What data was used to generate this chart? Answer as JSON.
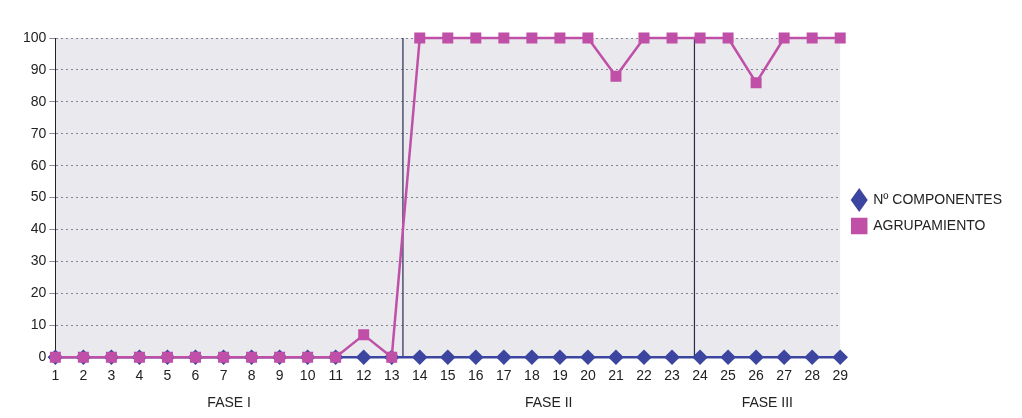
{
  "chart_data": {
    "type": "line",
    "x": [
      1,
      2,
      3,
      4,
      5,
      6,
      7,
      8,
      9,
      10,
      11,
      12,
      13,
      14,
      15,
      16,
      17,
      18,
      19,
      20,
      21,
      22,
      23,
      24,
      25,
      26,
      27,
      28,
      29
    ],
    "xlim": [
      1,
      29
    ],
    "xticks": [
      1,
      2,
      3,
      4,
      5,
      6,
      7,
      8,
      9,
      10,
      11,
      12,
      13,
      14,
      15,
      16,
      17,
      18,
      19,
      20,
      21,
      22,
      23,
      24,
      25,
      26,
      27,
      28,
      29
    ],
    "ylim": [
      0,
      100
    ],
    "yticks": [
      0,
      10,
      20,
      30,
      40,
      50,
      60,
      70,
      80,
      90,
      100
    ],
    "grid": "y",
    "legend": "right",
    "line_style": "solid",
    "series": [
      {
        "name": "Nº COMPONENTES",
        "color": "#3c46a0",
        "marker": "diamond",
        "values": [
          0,
          0,
          0,
          0,
          0,
          0,
          0,
          0,
          0,
          0,
          0,
          0,
          0,
          0,
          0,
          0,
          0,
          0,
          0,
          0,
          0,
          0,
          0,
          0,
          0,
          0,
          0,
          0,
          0
        ]
      },
      {
        "name": "AGRUPAMIENTO",
        "color": "#c04fa8",
        "marker": "square",
        "values": [
          0,
          0,
          0,
          0,
          0,
          0,
          0,
          0,
          0,
          0,
          0,
          7,
          0,
          100,
          100,
          100,
          100,
          100,
          100,
          100,
          88,
          100,
          100,
          100,
          100,
          86,
          100,
          100,
          100
        ]
      }
    ],
    "ref_lines": [
      {
        "axis": "x",
        "value": 13.4,
        "color": "#2a2a50"
      },
      {
        "axis": "x",
        "value": 23.8,
        "color": "#2a2a50"
      }
    ],
    "annotations": [
      "FASE I",
      "FASE II",
      "FASE III"
    ]
  }
}
